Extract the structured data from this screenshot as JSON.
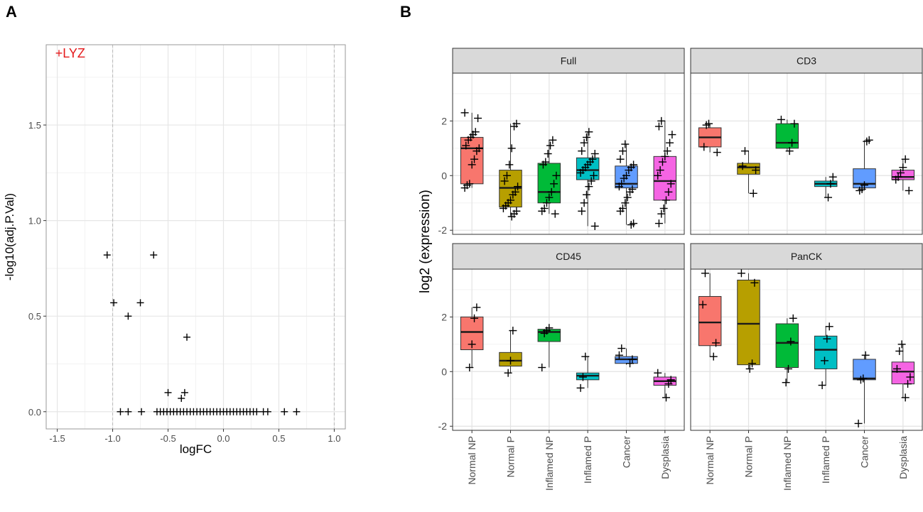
{
  "panel_labels": {
    "a": "A",
    "b": "B"
  },
  "colors": {
    "Normal NP": "#F8766D",
    "Normal P": "#B79F00",
    "Inflamed NP": "#00BA38",
    "Inflamed P": "#00BFC4",
    "Cancer": "#619CFF",
    "Dysplasia": "#F564E3",
    "highlight": "#E41A1C",
    "strip": "#D9D9D9"
  },
  "chart_data": [
    {
      "type": "scatter",
      "title": "",
      "xlabel": "logFC",
      "ylabel": "-log10(adj.P.Val)",
      "xlim": [
        -1.6,
        1.1
      ],
      "ylim": [
        -0.09,
        1.92
      ],
      "x_ticks": [
        -1.5,
        -1.0,
        -0.5,
        0.0,
        0.5,
        1.0
      ],
      "x_tick_labels": [
        "-1.5",
        "-1.0",
        "-0.5",
        "0.0",
        "0.5",
        "1.0"
      ],
      "y_ticks": [
        0.0,
        0.5,
        1.0,
        1.5
      ],
      "y_tick_labels": [
        "0.0",
        "0.5",
        "1.0",
        "1.5"
      ],
      "vlines": [
        -1.0,
        1.0
      ],
      "marker": "+",
      "labeled_point": {
        "label": "+LYZ",
        "x": -1.48,
        "y": 1.88
      },
      "points": [
        {
          "x": -1.05,
          "y": 0.82
        },
        {
          "x": -0.63,
          "y": 0.82
        },
        {
          "x": -0.99,
          "y": 0.57
        },
        {
          "x": -0.75,
          "y": 0.57
        },
        {
          "x": -0.86,
          "y": 0.5
        },
        {
          "x": -0.33,
          "y": 0.39
        },
        {
          "x": -0.5,
          "y": 0.1
        },
        {
          "x": -0.35,
          "y": 0.1
        },
        {
          "x": -0.38,
          "y": 0.07
        },
        {
          "x": -0.93,
          "y": 0.0
        },
        {
          "x": -0.86,
          "y": 0.0
        },
        {
          "x": -0.74,
          "y": 0.0
        },
        {
          "x": -0.6,
          "y": 0.0
        },
        {
          "x": -0.57,
          "y": 0.0
        },
        {
          "x": -0.54,
          "y": 0.0
        },
        {
          "x": -0.51,
          "y": 0.0
        },
        {
          "x": -0.48,
          "y": 0.0
        },
        {
          "x": -0.45,
          "y": 0.0
        },
        {
          "x": -0.42,
          "y": 0.0
        },
        {
          "x": -0.39,
          "y": 0.0
        },
        {
          "x": -0.36,
          "y": 0.0
        },
        {
          "x": -0.33,
          "y": 0.0
        },
        {
          "x": -0.3,
          "y": 0.0
        },
        {
          "x": -0.27,
          "y": 0.0
        },
        {
          "x": -0.24,
          "y": 0.0
        },
        {
          "x": -0.21,
          "y": 0.0
        },
        {
          "x": -0.18,
          "y": 0.0
        },
        {
          "x": -0.15,
          "y": 0.0
        },
        {
          "x": -0.12,
          "y": 0.0
        },
        {
          "x": -0.09,
          "y": 0.0
        },
        {
          "x": -0.06,
          "y": 0.0
        },
        {
          "x": -0.03,
          "y": 0.0
        },
        {
          "x": 0.0,
          "y": 0.0
        },
        {
          "x": 0.03,
          "y": 0.0
        },
        {
          "x": 0.06,
          "y": 0.0
        },
        {
          "x": 0.09,
          "y": 0.0
        },
        {
          "x": 0.12,
          "y": 0.0
        },
        {
          "x": 0.15,
          "y": 0.0
        },
        {
          "x": 0.18,
          "y": 0.0
        },
        {
          "x": 0.21,
          "y": 0.0
        },
        {
          "x": 0.24,
          "y": 0.0
        },
        {
          "x": 0.27,
          "y": 0.0
        },
        {
          "x": 0.3,
          "y": 0.0
        },
        {
          "x": 0.36,
          "y": 0.0
        },
        {
          "x": 0.4,
          "y": 0.0
        },
        {
          "x": 0.55,
          "y": 0.0
        },
        {
          "x": 0.66,
          "y": 0.0
        }
      ]
    },
    {
      "type": "box",
      "title": "",
      "ylabel": "log2 (expression)",
      "xlabel": "",
      "ylim": [
        -2.15,
        3.75
      ],
      "y_ticks": [
        -2,
        0,
        2
      ],
      "y_tick_labels": [
        "-2",
        "0",
        "2"
      ],
      "categories": [
        "Normal NP",
        "Normal P",
        "Inflamed NP",
        "Inflamed P",
        "Cancer",
        "Dysplasia"
      ],
      "facets": [
        {
          "name": "Full",
          "boxes": [
            {
              "q1": -0.3,
              "median": 1.0,
              "q3": 1.4,
              "lower": -0.45,
              "upper": 2.3,
              "points": [
                2.3,
                2.1,
                1.6,
                1.5,
                1.4,
                1.3,
                1.1,
                1.0,
                0.9,
                0.6,
                0.4,
                -0.3,
                -0.35,
                -0.45
              ]
            },
            {
              "q1": -1.15,
              "median": -0.45,
              "q3": 0.2,
              "lower": -1.5,
              "upper": 1.9,
              "points": [
                1.9,
                1.8,
                1.0,
                0.4,
                0.0,
                -0.2,
                -0.4,
                -0.6,
                -0.7,
                -0.9,
                -1.0,
                -1.1,
                -1.2,
                -1.3,
                -1.4,
                -1.5
              ]
            },
            {
              "q1": -1.0,
              "median": -0.6,
              "q3": 0.45,
              "lower": -1.4,
              "upper": 1.3,
              "points": [
                1.3,
                1.1,
                0.8,
                0.5,
                0.4,
                0.0,
                -0.3,
                -0.6,
                -0.8,
                -1.0,
                -1.2,
                -1.3,
                -1.4
              ]
            },
            {
              "q1": -0.15,
              "median": 0.2,
              "q3": 0.65,
              "lower": -1.85,
              "upper": 1.6,
              "points": [
                1.6,
                1.4,
                1.2,
                0.9,
                0.8,
                0.6,
                0.5,
                0.4,
                0.3,
                0.2,
                0.1,
                0.0,
                -0.2,
                -0.4,
                -0.7,
                -1.0,
                -1.3,
                -1.85
              ]
            },
            {
              "q1": -0.45,
              "median": -0.3,
              "q3": 0.35,
              "lower": -1.8,
              "upper": 1.15,
              "points": [
                1.15,
                0.9,
                0.6,
                0.4,
                0.3,
                0.2,
                0.0,
                -0.1,
                -0.3,
                -0.4,
                -0.5,
                -0.6,
                -0.8,
                -1.0,
                -1.2,
                -1.3,
                -1.75,
                -1.8
              ]
            },
            {
              "q1": -0.9,
              "median": -0.2,
              "q3": 0.7,
              "lower": -1.75,
              "upper": 2.0,
              "points": [
                2.0,
                1.8,
                1.5,
                1.2,
                0.9,
                0.7,
                0.5,
                0.2,
                0.0,
                -0.3,
                -0.6,
                -0.9,
                -1.2,
                -1.4,
                -1.75
              ]
            }
          ]
        },
        {
          "name": "CD3",
          "boxes": [
            {
              "q1": 1.05,
              "median": 1.4,
              "q3": 1.75,
              "lower": 0.85,
              "upper": 1.9,
              "points": [
                1.9,
                1.85,
                1.05,
                0.85
              ]
            },
            {
              "q1": 0.05,
              "median": 0.3,
              "q3": 0.45,
              "lower": -0.65,
              "upper": 0.9,
              "points": [
                0.9,
                0.35,
                0.2,
                -0.65
              ]
            },
            {
              "q1": 1.0,
              "median": 1.2,
              "q3": 1.9,
              "lower": 0.9,
              "upper": 2.05,
              "points": [
                2.05,
                1.9,
                1.2,
                0.9
              ]
            },
            {
              "q1": -0.4,
              "median": -0.3,
              "q3": -0.2,
              "lower": -0.8,
              "upper": -0.05,
              "points": [
                -0.05,
                -0.3,
                -0.8
              ]
            },
            {
              "q1": -0.45,
              "median": -0.3,
              "q3": 0.25,
              "lower": -0.55,
              "upper": 1.3,
              "points": [
                1.3,
                1.25,
                -0.35,
                -0.5,
                -0.55
              ]
            },
            {
              "q1": -0.15,
              "median": -0.05,
              "q3": 0.2,
              "lower": -0.55,
              "upper": 0.6,
              "points": [
                0.6,
                0.3,
                0.1,
                -0.05,
                -0.15,
                -0.55
              ]
            }
          ]
        },
        {
          "name": "CD45",
          "boxes": [
            {
              "q1": 0.8,
              "median": 1.45,
              "q3": 2.0,
              "lower": 0.15,
              "upper": 2.35,
              "points": [
                2.35,
                1.95,
                1.0,
                0.15
              ]
            },
            {
              "q1": 0.2,
              "median": 0.4,
              "q3": 0.7,
              "lower": -0.05,
              "upper": 1.5,
              "points": [
                1.5,
                0.4,
                -0.05
              ]
            },
            {
              "q1": 1.1,
              "median": 1.45,
              "q3": 1.55,
              "lower": 0.15,
              "upper": 1.6,
              "points": [
                1.6,
                1.5,
                1.4,
                0.15
              ]
            },
            {
              "q1": -0.3,
              "median": -0.15,
              "q3": -0.05,
              "lower": -0.6,
              "upper": 0.55,
              "points": [
                0.55,
                -0.2,
                -0.6
              ]
            },
            {
              "q1": 0.3,
              "median": 0.45,
              "q3": 0.55,
              "lower": 0.25,
              "upper": 0.85,
              "points": [
                0.85,
                0.6,
                0.45,
                0.3
              ]
            },
            {
              "q1": -0.5,
              "median": -0.35,
              "q3": -0.2,
              "lower": -0.95,
              "upper": -0.05,
              "points": [
                -0.05,
                -0.3,
                -0.45,
                -0.95
              ]
            }
          ]
        },
        {
          "name": "PanCK",
          "boxes": [
            {
              "q1": 0.95,
              "median": 1.8,
              "q3": 2.75,
              "lower": 0.55,
              "upper": 3.6,
              "points": [
                3.6,
                2.45,
                1.05,
                0.55
              ]
            },
            {
              "q1": 0.25,
              "median": 1.75,
              "q3": 3.35,
              "lower": 0.1,
              "upper": 3.6,
              "points": [
                3.6,
                3.25,
                0.3,
                0.1
              ]
            },
            {
              "q1": 0.15,
              "median": 1.05,
              "q3": 1.75,
              "lower": -0.4,
              "upper": 1.95,
              "points": [
                1.95,
                1.1,
                0.1,
                -0.4
              ]
            },
            {
              "q1": 0.1,
              "median": 0.8,
              "q3": 1.3,
              "lower": -0.5,
              "upper": 1.65,
              "points": [
                1.65,
                1.2,
                0.4,
                -0.5
              ]
            },
            {
              "q1": -0.3,
              "median": -0.25,
              "q3": 0.45,
              "lower": -1.9,
              "upper": 0.6,
              "points": [
                0.6,
                -0.25,
                -0.3,
                -1.9
              ]
            },
            {
              "q1": -0.45,
              "median": 0.0,
              "q3": 0.35,
              "lower": -0.95,
              "upper": 1.0,
              "points": [
                1.0,
                0.75,
                0.1,
                -0.2,
                -0.45,
                -0.95
              ]
            }
          ]
        }
      ]
    }
  ]
}
